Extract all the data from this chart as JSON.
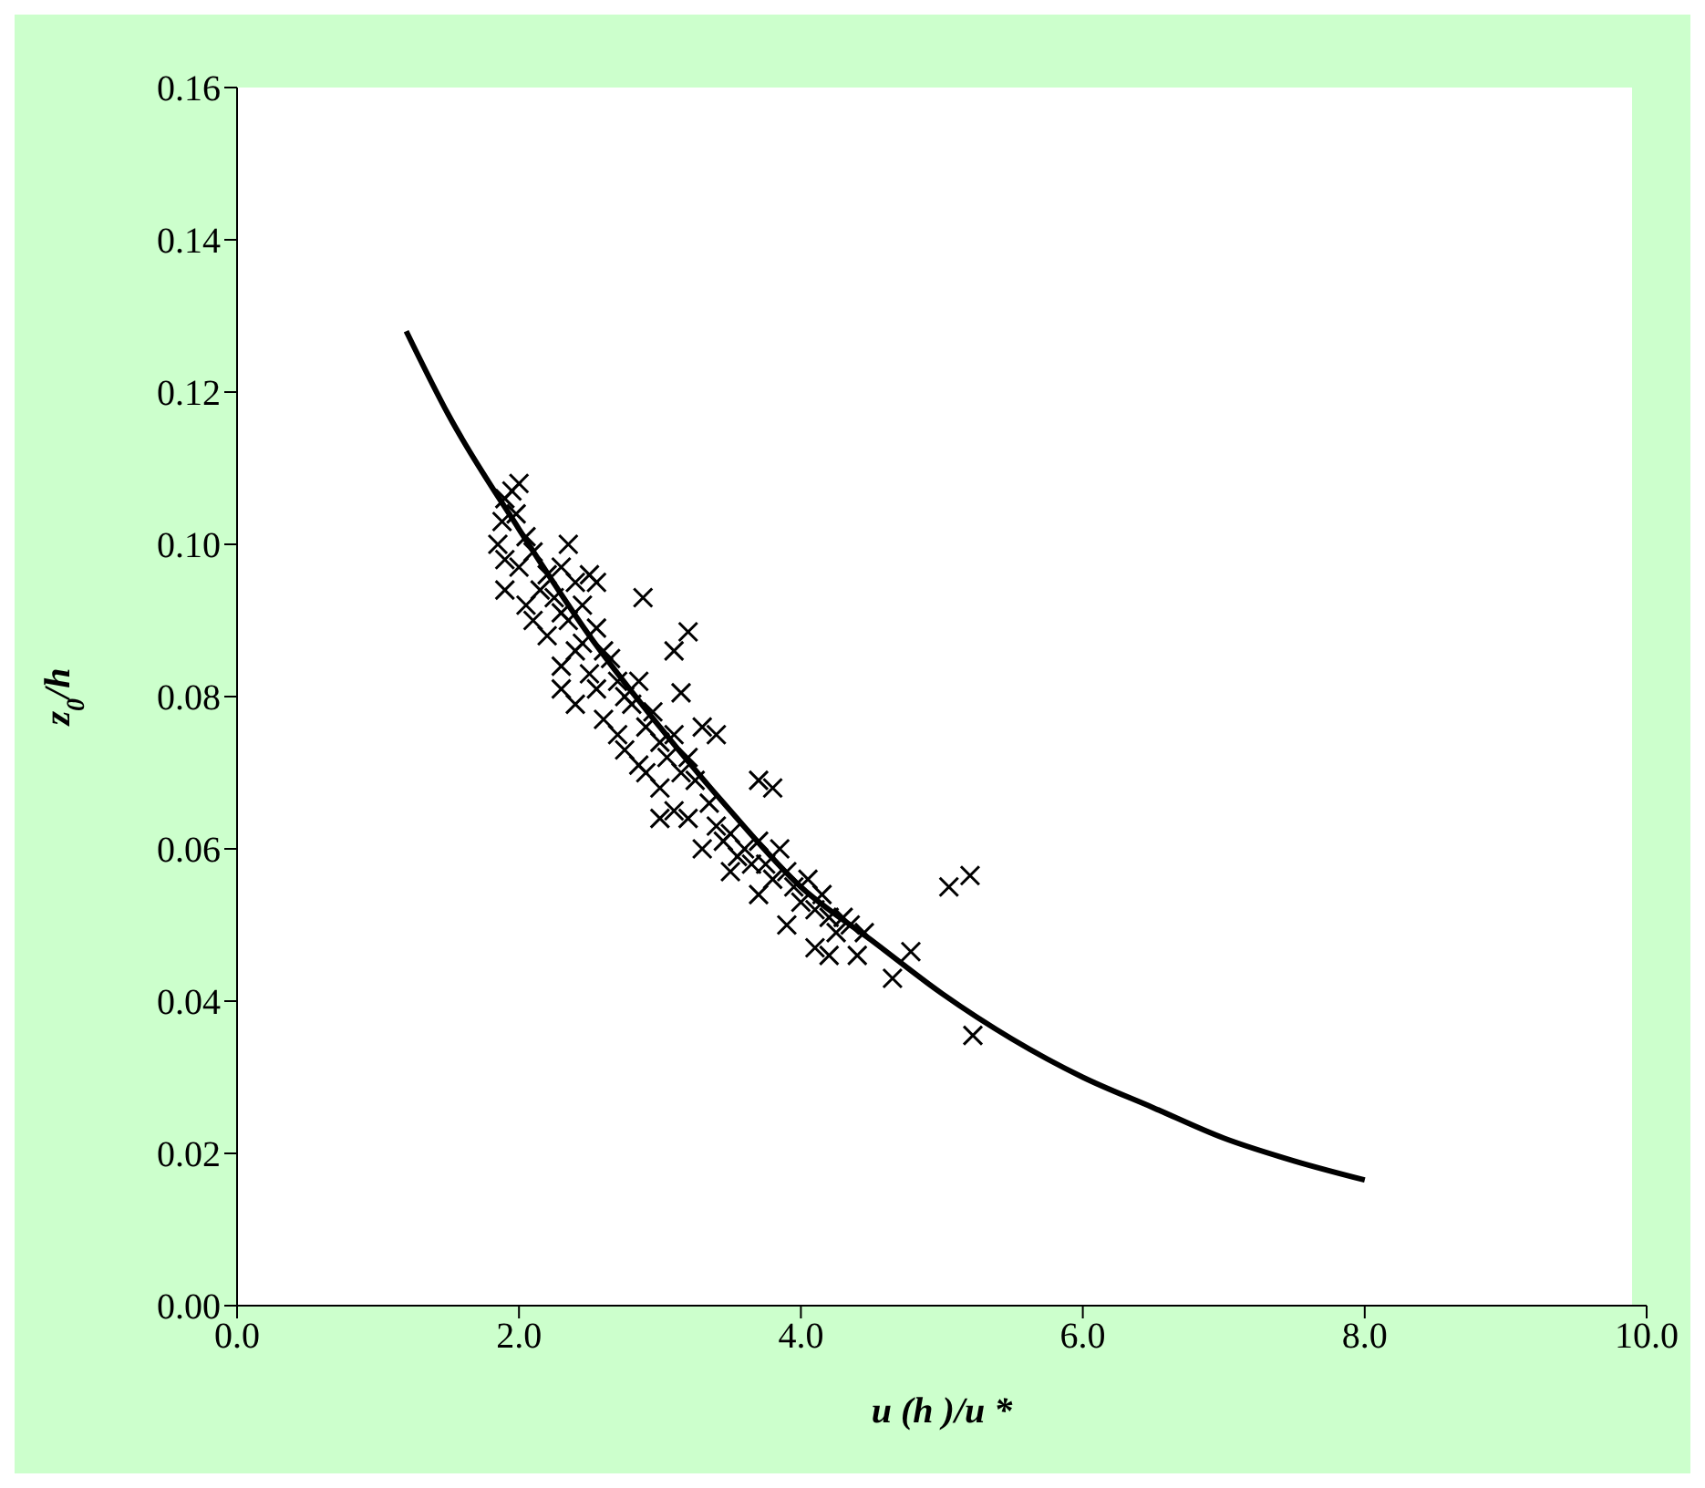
{
  "chart_data": {
    "type": "scatter",
    "xlabel": "u (h )/u *",
    "ylabel": "z$_{0}$/h",
    "xlim": [
      0,
      10
    ],
    "xticks": [
      {
        "value": 0,
        "label": "0.0"
      },
      {
        "value": 2,
        "label": "2.0"
      },
      {
        "value": 4,
        "label": "4.0"
      },
      {
        "value": 6,
        "label": "6.0"
      },
      {
        "value": 8,
        "label": "8.0"
      },
      {
        "value": 10,
        "label": "10.0"
      }
    ],
    "ylim": [
      0,
      0.16
    ],
    "yticks": [
      {
        "value": 0,
        "label": "0.00"
      },
      {
        "value": 0.02,
        "label": "0.02"
      },
      {
        "value": 0.04,
        "label": "0.04"
      },
      {
        "value": 0.06,
        "label": "0.06"
      },
      {
        "value": 0.08,
        "label": "0.08"
      },
      {
        "value": 0.1,
        "label": "0.10"
      },
      {
        "value": 0.12,
        "label": "0.12"
      },
      {
        "value": 0.14,
        "label": "0.14"
      },
      {
        "value": 0.16,
        "label": "0.16"
      }
    ],
    "grid": false,
    "series": [
      {
        "type": "scatter",
        "color": "#000000",
        "marker": "cross",
        "x": [
          1.85,
          1.88,
          1.9,
          1.95,
          1.98,
          2.0,
          2.05,
          1.9,
          2.0,
          2.1,
          2.15,
          2.2,
          2.05,
          2.1,
          2.25,
          2.3,
          2.35,
          2.2,
          2.3,
          2.4,
          2.45,
          2.5,
          2.55,
          2.3,
          2.4,
          2.5,
          2.6,
          2.35,
          2.45,
          2.55,
          2.65,
          2.7,
          2.75,
          2.6,
          2.7,
          2.8,
          2.85,
          2.9,
          2.95,
          2.75,
          2.85,
          3.0,
          3.05,
          3.1,
          2.9,
          3.0,
          3.15,
          3.2,
          3.25,
          3.3,
          3.1,
          3.2,
          3.35,
          3.4,
          3.45,
          3.3,
          3.5,
          3.55,
          3.6,
          3.65,
          3.5,
          3.7,
          3.75,
          3.8,
          3.85,
          3.9,
          3.7,
          3.95,
          4.0,
          4.05,
          4.1,
          3.9,
          4.15,
          4.2,
          4.25,
          4.3,
          4.1,
          4.35,
          4.4,
          4.45,
          4.2,
          1.9,
          2.4,
          2.3,
          2.88,
          3.1,
          3.2,
          3.15,
          3.7,
          3.8,
          4.65,
          4.78,
          5.05,
          5.2,
          5.22,
          3.4,
          2.55,
          3.0
        ],
        "values": [
          0.1,
          0.103,
          0.106,
          0.107,
          0.104,
          0.108,
          0.101,
          0.098,
          0.097,
          0.099,
          0.094,
          0.096,
          0.092,
          0.09,
          0.093,
          0.097,
          0.1,
          0.088,
          0.091,
          0.095,
          0.092,
          0.096,
          0.089,
          0.084,
          0.086,
          0.083,
          0.086,
          0.09,
          0.087,
          0.081,
          0.085,
          0.082,
          0.08,
          0.077,
          0.075,
          0.079,
          0.082,
          0.076,
          0.078,
          0.073,
          0.071,
          0.074,
          0.072,
          0.075,
          0.07,
          0.068,
          0.07,
          0.072,
          0.069,
          0.076,
          0.065,
          0.064,
          0.066,
          0.063,
          0.061,
          0.06,
          0.062,
          0.059,
          0.06,
          0.058,
          0.057,
          0.061,
          0.058,
          0.056,
          0.06,
          0.057,
          0.054,
          0.055,
          0.053,
          0.056,
          0.052,
          0.05,
          0.054,
          0.051,
          0.049,
          0.051,
          0.047,
          0.05,
          0.046,
          0.049,
          0.046,
          0.094,
          0.079,
          0.081,
          0.093,
          0.086,
          0.0885,
          0.0805,
          0.069,
          0.068,
          0.043,
          0.0465,
          0.055,
          0.0565,
          0.0355,
          0.075,
          0.095,
          0.064
        ]
      },
      {
        "type": "line",
        "color": "#000000",
        "marker": "none",
        "line_style": "solid",
        "x": [
          1.2,
          1.5,
          2.0,
          2.5,
          3.0,
          3.5,
          4.0,
          4.5,
          5.0,
          5.5,
          6.0,
          6.5,
          7.0,
          7.5,
          8.0
        ],
        "values": [
          0.128,
          0.117,
          0.102,
          0.088,
          0.076,
          0.065,
          0.055,
          0.048,
          0.041,
          0.035,
          0.03,
          0.026,
          0.022,
          0.019,
          0.0165
        ]
      }
    ]
  }
}
